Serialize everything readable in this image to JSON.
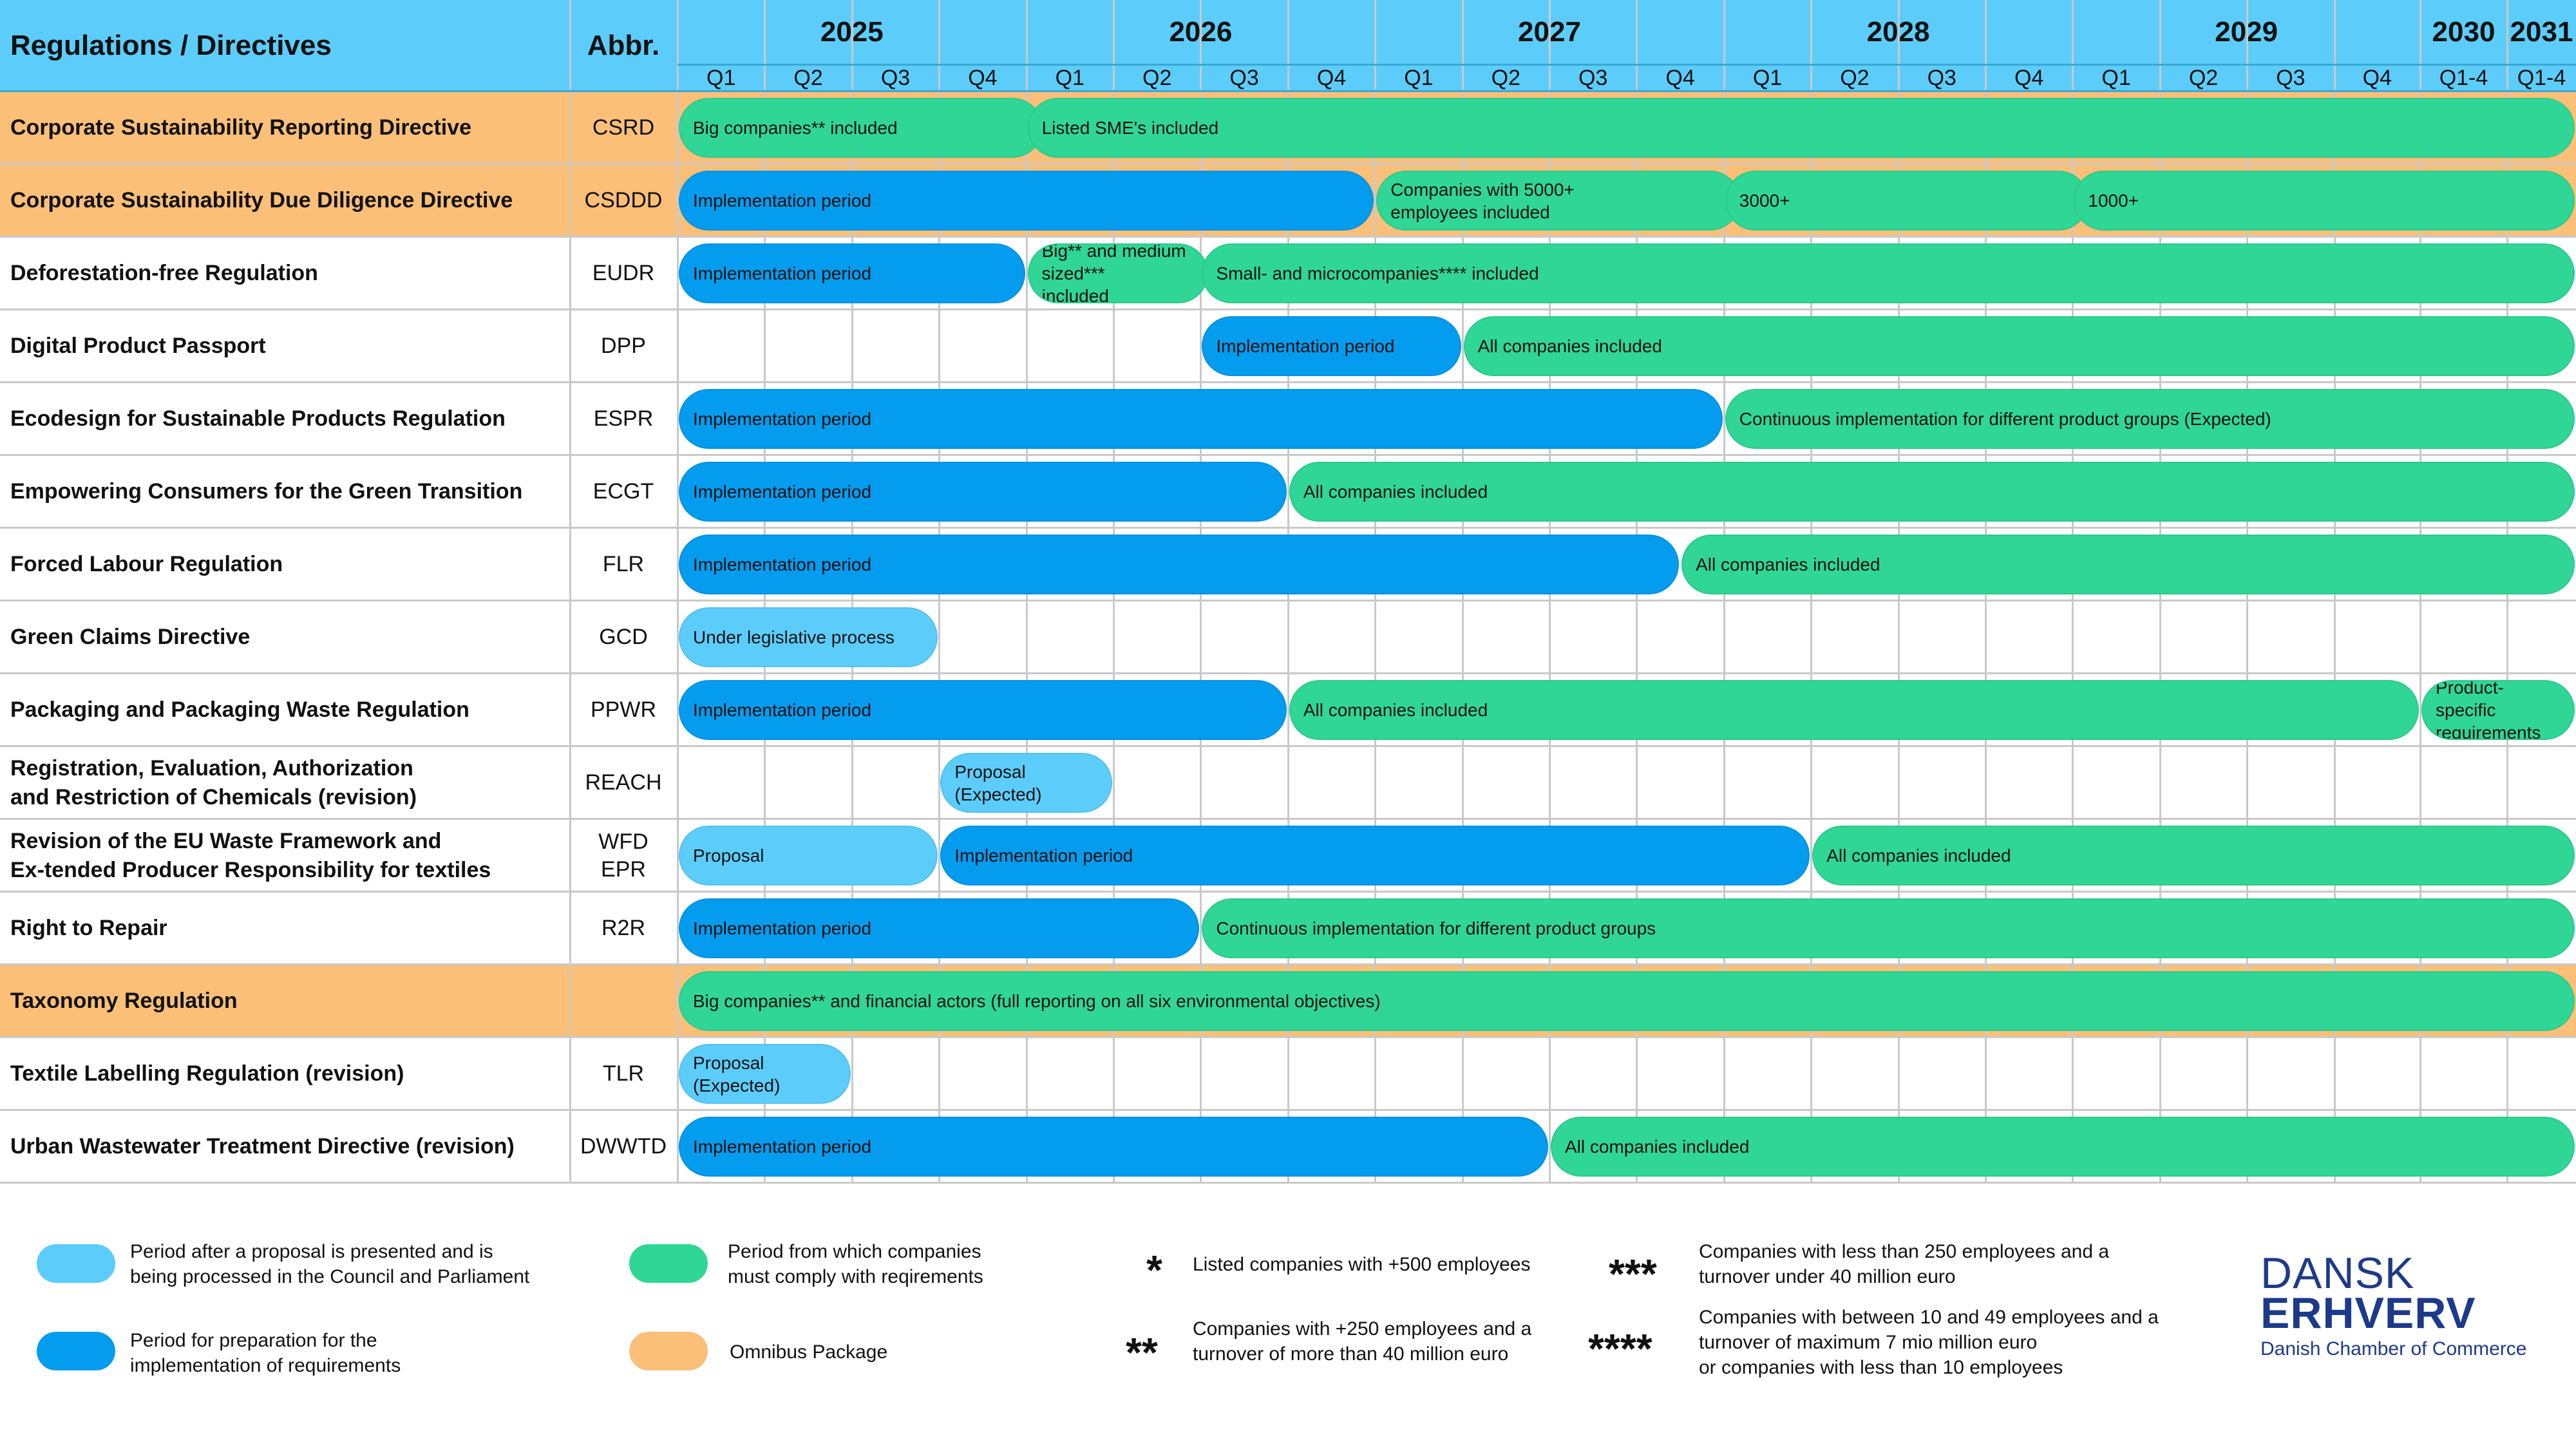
{
  "header": {
    "title": "Regulations / Directives",
    "abbr": "Abbr.",
    "years": [
      "2025",
      "2026",
      "2027",
      "2028",
      "2029",
      "2030",
      "2031"
    ],
    "quarters": [
      "Q1",
      "Q2",
      "Q3",
      "Q4",
      "Q1",
      "Q2",
      "Q3",
      "Q4",
      "Q1",
      "Q2",
      "Q3",
      "Q4",
      "Q1",
      "Q2",
      "Q3",
      "Q4",
      "Q1",
      "Q2",
      "Q3",
      "Q4",
      "Q1-4",
      "Q1-4"
    ]
  },
  "colors": {
    "header": "#5ccdfb",
    "proposal": "#5ccdfb",
    "implementation": "#049cee",
    "compliance": "#30d695",
    "omnibus": "#fbbf78"
  },
  "rows": [
    {
      "name": "Corporate Sustainability Reporting Directive",
      "abbr": "CSRD",
      "omnibus": true,
      "bars": [
        {
          "start": 0,
          "end": 4.2,
          "type": "compliance",
          "label": "Big companies** included"
        },
        {
          "start": 4,
          "end": 22,
          "type": "compliance",
          "label": "Listed SME's included"
        }
      ]
    },
    {
      "name": "Corporate Sustainability Due Diligence Directive",
      "abbr": "CSDDD",
      "omnibus": true,
      "bars": [
        {
          "start": 0,
          "end": 8,
          "type": "implementation",
          "label": "Implementation period"
        },
        {
          "start": 8,
          "end": 12.2,
          "type": "compliance",
          "label": "Companies with 5000+\nemployees included"
        },
        {
          "start": 12,
          "end": 16.2,
          "type": "compliance",
          "label": "3000+"
        },
        {
          "start": 16,
          "end": 22,
          "type": "compliance",
          "label": "1000+"
        }
      ]
    },
    {
      "name": "Deforestation-free Regulation",
      "abbr": "EUDR",
      "omnibus": false,
      "bars": [
        {
          "start": 0,
          "end": 4,
          "type": "implementation",
          "label": "Implementation period"
        },
        {
          "start": 4,
          "end": 6.1,
          "type": "compliance",
          "label": "Big** and medium\nsized***\n included"
        },
        {
          "start": 6,
          "end": 22,
          "type": "compliance",
          "label": "Small- and microcompanies**** included"
        }
      ]
    },
    {
      "name": "Digital Product Passport",
      "abbr": "DPP",
      "omnibus": false,
      "bars": [
        {
          "start": 6,
          "end": 9,
          "type": "implementation",
          "label": "Implementation period"
        },
        {
          "start": 9,
          "end": 22,
          "type": "compliance",
          "label": "All companies included"
        }
      ]
    },
    {
      "name": "Ecodesign for Sustainable Products Regulation",
      "abbr": "ESPR",
      "omnibus": false,
      "bars": [
        {
          "start": 0,
          "end": 12,
          "type": "implementation",
          "label": "Implementation period"
        },
        {
          "start": 12,
          "end": 22,
          "type": "compliance",
          "label": "Continuous implementation for different product groups (Expected)"
        }
      ]
    },
    {
      "name": "Empowering Consumers for the Green Transition",
      "abbr": "ECGT",
      "omnibus": false,
      "bars": [
        {
          "start": 0,
          "end": 7,
          "type": "implementation",
          "label": "Implementation period"
        },
        {
          "start": 7,
          "end": 22,
          "type": "compliance",
          "label": "All companies included"
        }
      ]
    },
    {
      "name": "Forced Labour Regulation",
      "abbr": "FLR",
      "omnibus": false,
      "bars": [
        {
          "start": 0,
          "end": 11.5,
          "type": "implementation",
          "label": "Implementation period"
        },
        {
          "start": 11.5,
          "end": 22,
          "type": "compliance",
          "label": "All companies included"
        }
      ]
    },
    {
      "name": "Green Claims Directive",
      "abbr": "GCD",
      "omnibus": false,
      "bars": [
        {
          "start": 0,
          "end": 3,
          "type": "proposal",
          "label": "Under legislative process"
        }
      ]
    },
    {
      "name": "Packaging and Packaging Waste Regulation",
      "abbr": "PPWR",
      "omnibus": false,
      "bars": [
        {
          "start": 0,
          "end": 7,
          "type": "implementation",
          "label": "Implementation period"
        },
        {
          "start": 7,
          "end": 20,
          "type": "compliance",
          "label": "All companies included"
        },
        {
          "start": 20,
          "end": 22,
          "type": "compliance",
          "label": "Product-\nspecific\nrequirements"
        }
      ]
    },
    {
      "name": "Registration, Evaluation, Authorization\nand Restriction of Chemicals (revision)",
      "abbr": "REACH",
      "omnibus": false,
      "bars": [
        {
          "start": 3,
          "end": 5,
          "type": "proposal",
          "label": "Proposal\n(Expected)"
        }
      ]
    },
    {
      "name": "Revision of the EU Waste Framework and\nEx-tended Producer Responsibility for textiles",
      "abbr": "WFD\nEPR",
      "omnibus": false,
      "bars": [
        {
          "start": 0,
          "end": 3,
          "type": "proposal",
          "label": "Proposal"
        },
        {
          "start": 3,
          "end": 13,
          "type": "implementation",
          "label": "Implementation period"
        },
        {
          "start": 13,
          "end": 22,
          "type": "compliance",
          "label": "All companies included"
        }
      ]
    },
    {
      "name": "Right to Repair",
      "abbr": "R2R",
      "omnibus": false,
      "bars": [
        {
          "start": 0,
          "end": 6,
          "type": "implementation",
          "label": "Implementation period"
        },
        {
          "start": 6,
          "end": 22,
          "type": "compliance",
          "label": "Continuous implementation for different product groups"
        }
      ]
    },
    {
      "name": "Taxonomy Regulation",
      "abbr": "",
      "omnibus": true,
      "bars": [
        {
          "start": 0,
          "end": 22,
          "type": "compliance",
          "label": "Big companies** and financial actors (full reporting on all six environmental objectives)"
        }
      ]
    },
    {
      "name": "Textile Labelling Regulation (revision)",
      "abbr": "TLR",
      "omnibus": false,
      "bars": [
        {
          "start": 0,
          "end": 2,
          "type": "proposal",
          "label": "Proposal\n(Expected)"
        }
      ]
    },
    {
      "name": "Urban Wastewater Treatment Directive (revision)",
      "abbr": "DWWTD",
      "omnibus": false,
      "bars": [
        {
          "start": 0,
          "end": 10,
          "type": "implementation",
          "label": "Implementation period"
        },
        {
          "start": 10,
          "end": 22,
          "type": "compliance",
          "label": "All companies included"
        }
      ]
    }
  ],
  "legend": {
    "proposal": "Period after a proposal is presented and is\nbeing processed in the Council and Parliament",
    "implementation": "Period for preparation for the\nimplementation of requirements",
    "compliance": "Period from which companies\nmust comply with reqirements",
    "omnibus": "Omnibus Package"
  },
  "footnotes": [
    {
      "stars": "*",
      "text": "Listed companies with +500 employees"
    },
    {
      "stars": "**",
      "text": "Companies with +250 employees and a\nturnover of more than 40 million euro"
    },
    {
      "stars": "***",
      "text": "Companies with less than 250 employees and a\nturnover under 40 million euro"
    },
    {
      "stars": "****",
      "text": "Companies with between 10 and 49 employees and a\nturnover of maximum 7 mio million euro\nor companies with less than 10 employees"
    }
  ],
  "logo": {
    "line1": "DANSK",
    "line2": "ERHVERV",
    "line3": "Danish Chamber of Commerce"
  }
}
